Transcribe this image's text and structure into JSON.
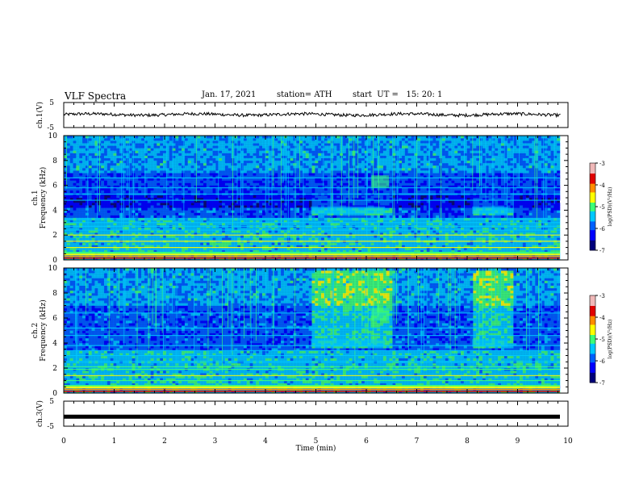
{
  "header": {
    "title": "VLF Spectra",
    "date": "Jan. 17, 2021",
    "station": "station= ATH",
    "start": "start  UT =   15: 20: 1"
  },
  "colors": {
    "colormap": [
      "#00007a",
      "#0000ff",
      "#0060ff",
      "#00c8ff",
      "#3cff78",
      "#ffff00",
      "#ff8c00",
      "#e00000",
      "#f0b8b8"
    ],
    "background_spectrum": "#0a0a6e",
    "trace": "#000000"
  },
  "chart_data": [
    {
      "type": "line",
      "name": "ch1-voltage",
      "ylabel": "ch.1(V)",
      "ylim": [
        -5,
        5
      ],
      "yticks": [
        "5",
        "-5"
      ],
      "xlim": [
        0,
        10
      ],
      "description_values": {
        "mean": 0.2,
        "amplitude": 0.6
      }
    },
    {
      "type": "heatmap",
      "name": "ch1-spectrogram",
      "ylabel": "ch.1\nFrequency (kHz)",
      "ylabel_line1": "ch.1",
      "ylabel_line2": "Frequency (kHz)",
      "ylim": [
        0,
        10
      ],
      "yticks": [
        "0",
        "2",
        "4",
        "6",
        "8",
        "10"
      ],
      "xlim": [
        0,
        10
      ],
      "colorbar": {
        "label": "log(PSD)(V²/Hz)",
        "range": [
          -7,
          -3
        ],
        "ticks": [
          "-3",
          "-4",
          "-5",
          "-6",
          "-7"
        ]
      },
      "bursts": [
        {
          "start": 4.9,
          "end": 6.5
        },
        {
          "start": 8.1,
          "end": 8.9
        }
      ],
      "lines_khz": [
        0.5,
        1.0,
        1.5,
        2.0,
        2.4,
        2.7,
        3.0,
        3.3,
        4.8,
        5.3,
        5.8,
        6.6
      ]
    },
    {
      "type": "heatmap",
      "name": "ch2-spectrogram",
      "ylabel_line1": "ch.2",
      "ylabel_line2": "Frequency (kHz)",
      "ylim": [
        0,
        10
      ],
      "yticks": [
        "0",
        "2",
        "4",
        "6",
        "8",
        "10"
      ],
      "xlim": [
        0,
        10
      ],
      "colorbar": {
        "label": "log(PSD)(V²/Hz)",
        "range": [
          -7,
          -3
        ],
        "ticks": [
          "-3",
          "-4",
          "-5",
          "-6",
          "-7"
        ]
      },
      "bursts": [
        {
          "start": 4.9,
          "end": 6.5
        },
        {
          "start": 8.1,
          "end": 8.9
        }
      ],
      "lines_khz": [
        0.5,
        1.0,
        1.4,
        1.9,
        2.1,
        2.5,
        3.0,
        3.4,
        3.8,
        4.6,
        5.2,
        6.4
      ]
    },
    {
      "type": "line",
      "name": "ch3-voltage",
      "ylabel": "ch.3(V)",
      "ylim": [
        -5,
        5
      ],
      "yticks": [
        "5",
        "-5"
      ],
      "xlim": [
        0,
        10
      ],
      "xlabel": "Time (min)",
      "xticks": [
        "0",
        "1",
        "2",
        "3",
        "4",
        "5",
        "6",
        "7",
        "8",
        "9",
        "10"
      ],
      "description_values": {
        "mean": -1.2,
        "amplitude": 0.1
      }
    }
  ]
}
